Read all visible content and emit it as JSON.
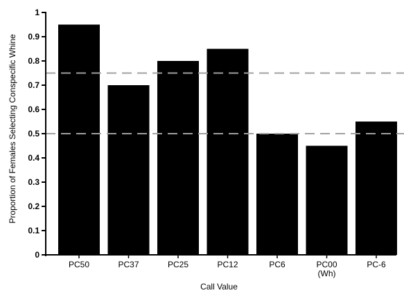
{
  "chart_data": {
    "type": "bar",
    "categories": [
      "PC50",
      "PC37",
      "PC25",
      "PC12",
      "PC6",
      "PC00\n(Wh)",
      "PC-6"
    ],
    "values": [
      0.95,
      0.7,
      0.8,
      0.85,
      0.5,
      0.45,
      0.55
    ],
    "title": "",
    "xlabel": "Call Value",
    "ylabel": "Proportion of Females Selecting Conspecific Whine",
    "ylim": [
      0,
      1
    ],
    "yticks": [
      {
        "value": 0,
        "label": "0"
      },
      {
        "value": 0.1,
        "label": "0.1"
      },
      {
        "value": 0.2,
        "label": "0.2"
      },
      {
        "value": 0.3,
        "label": "0.3"
      },
      {
        "value": 0.4,
        "label": "0.4"
      },
      {
        "value": 0.5,
        "label": "0.5"
      },
      {
        "value": 0.6,
        "label": "0.6"
      },
      {
        "value": 0.7,
        "label": "0.7"
      },
      {
        "value": 0.8,
        "label": "0.8"
      },
      {
        "value": 0.9,
        "label": "0.9"
      },
      {
        "value": 1,
        "label": "1"
      }
    ],
    "reference_lines": [
      0.5,
      0.75
    ],
    "grid": false,
    "legend": "none",
    "bar_color": "#000000",
    "reference_line_color": "#a0a0a0"
  }
}
